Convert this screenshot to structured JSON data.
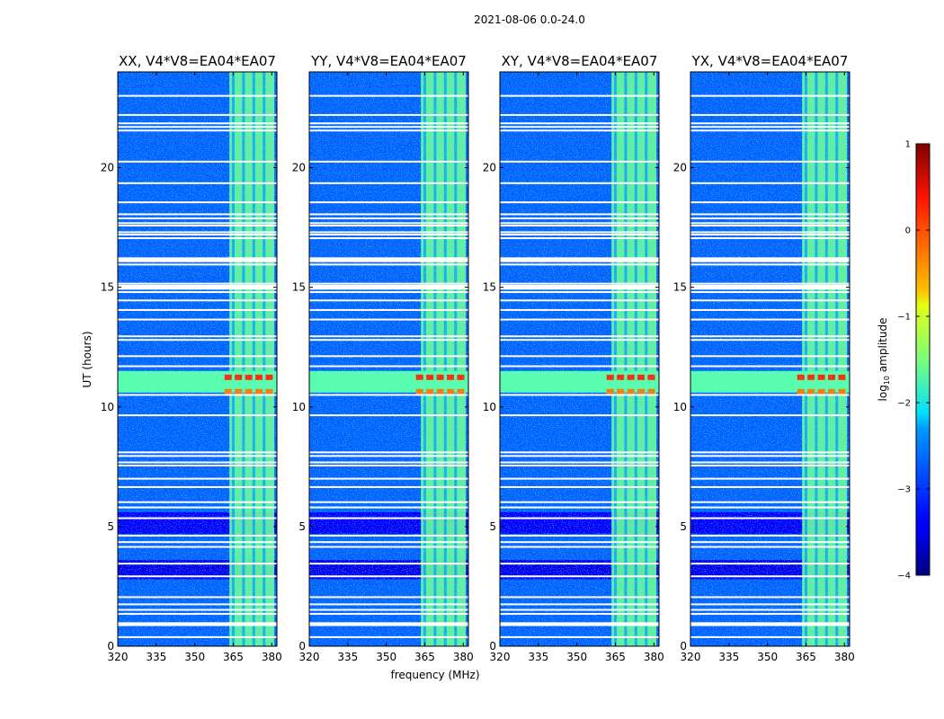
{
  "title": "2021-08-06 0.0-24.0",
  "chart_data": {
    "type": "heatmap",
    "title": "2021-08-06 0.0-24.0",
    "xlabel": "frequency (MHz)",
    "ylabel": "UT (hours)",
    "xlim": [
      320,
      382
    ],
    "ylim": [
      0,
      24
    ],
    "x_ticks": [
      320,
      335,
      350,
      365,
      380
    ],
    "y_ticks": [
      0,
      5,
      10,
      15,
      20
    ],
    "colorbar": {
      "label_main": "log",
      "label_sub": "10",
      "label_rest": " amplitude",
      "range": [
        -4,
        1
      ],
      "ticks": [
        1,
        0,
        -1,
        -2,
        -3,
        -4
      ],
      "tick_labels": [
        "1",
        "0",
        "−1",
        "−2",
        "−3",
        "−4"
      ],
      "colormap": "jet"
    },
    "panels": [
      {
        "name": "XX",
        "title": "XX, V4*V8=EA04*EA07"
      },
      {
        "name": "YY",
        "title": "YY, V4*V8=EA04*EA07"
      },
      {
        "name": "XY",
        "title": "XY, V4*V8=EA04*EA07"
      },
      {
        "name": "YX",
        "title": "YX, V4*V8=EA04*EA07"
      }
    ],
    "structure": {
      "background_log_amplitude": -2.9,
      "rfi_band_mhz": [
        363.5,
        381
      ],
      "rfi_band_log_amplitude": -1.6,
      "rfi_band_subchannel_edges_mhz": [
        365,
        369,
        373,
        377
      ],
      "broadband_rfi_hours": [
        10.6,
        11.5
      ],
      "broadband_rfi_log_amplitude": -1.7,
      "peak_log_amplitude": 0.2,
      "flagged_hours": [
        0.38,
        0.88,
        0.95,
        1.35,
        1.52,
        1.75,
        2.05,
        2.92,
        3.45,
        4.15,
        4.35,
        4.62,
        5.35,
        5.8,
        6.02,
        6.65,
        7.0,
        7.55,
        7.68,
        7.95,
        8.1,
        9.65,
        10.5,
        11.7,
        12.12,
        12.8,
        12.95,
        13.65,
        14.05,
        14.45,
        14.8,
        15.05,
        15.15,
        15.95,
        16.15,
        17.05,
        17.2,
        17.3,
        17.58,
        17.68,
        17.88,
        18.05,
        18.55,
        19.35,
        20.25,
        21.55,
        21.7,
        21.85,
        22.2,
        23.0
      ]
    }
  }
}
